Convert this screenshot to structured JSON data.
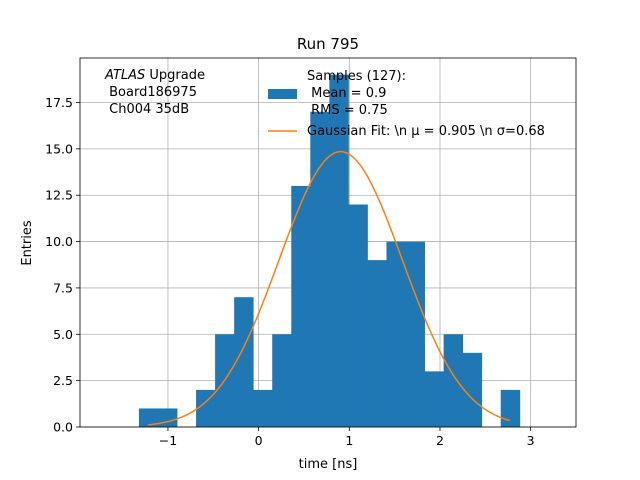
{
  "chart_data": {
    "type": "bar",
    "title": "Run 795",
    "xlabel": "time [ns]",
    "ylabel": "Entries",
    "xlim": [
      -1.97,
      3.5
    ],
    "ylim": [
      0,
      19.9
    ],
    "grid": true,
    "xticks": [
      -1,
      0,
      1,
      2,
      3
    ],
    "xtick_labels": [
      "−1",
      "0",
      "1",
      "2",
      "3"
    ],
    "yticks": [
      0.0,
      2.5,
      5.0,
      7.5,
      10.0,
      12.5,
      15.0,
      17.5
    ],
    "ytick_labels": [
      "0.0",
      "2.5",
      "5.0",
      "7.5",
      "10.0",
      "12.5",
      "15.0",
      "17.5"
    ],
    "bin_edges": [
      -1.32,
      -1.11,
      -0.9,
      -0.69,
      -0.48,
      -0.27,
      -0.06,
      0.15,
      0.36,
      0.57,
      0.78,
      0.99,
      1.2,
      1.41,
      1.62,
      1.83,
      2.04,
      2.25,
      2.46,
      2.67,
      2.88
    ],
    "counts": [
      1,
      1,
      0,
      2,
      5,
      7,
      2,
      5,
      13,
      17,
      19,
      12,
      9,
      10,
      10,
      3,
      5,
      4,
      0,
      2
    ],
    "series": [
      {
        "name": "Samples (127):",
        "kind": "histogram",
        "color": "#1f77b4"
      },
      {
        "name": "Gaussian Fit",
        "kind": "line",
        "color": "#ff7f0e",
        "amplitude": 14.85,
        "mu": 0.905,
        "sigma": 0.68,
        "x_range": [
          -1.22,
          2.77
        ]
      }
    ],
    "legend": {
      "position": "top-center",
      "samples_lines": [
        "Samples (127):",
        " Mean = 0.9",
        " RMS = 0.75"
      ],
      "fit_label": "Gaussian Fit: \\n μ = 0.905 \\n σ=0.68"
    },
    "annotation": {
      "atlas_italic": "ATLAS",
      "atlas_rest": " Upgrade",
      "line2": " Board186975",
      "line3": " Ch004 35dB"
    }
  }
}
